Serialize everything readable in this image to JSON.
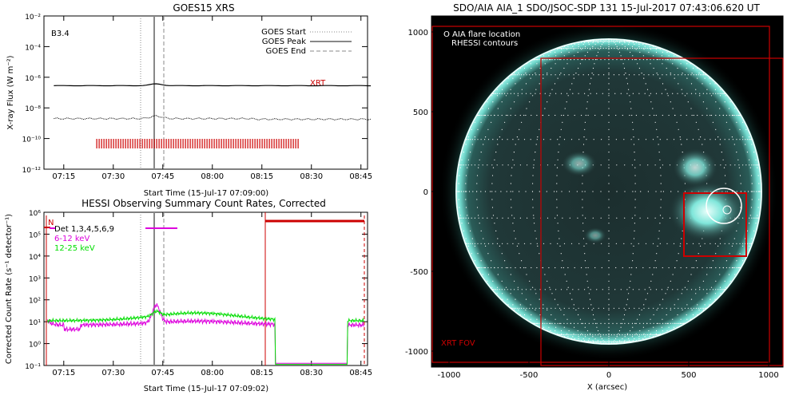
{
  "chart_data": [
    {
      "type": "line",
      "title": "GOES15 XRS",
      "xlabel": "Start Time (15-Jul-17 07:09:00)",
      "ylabel": "X-ray Flux (W m⁻²)",
      "x_ticks": [
        "07:15",
        "07:30",
        "07:45",
        "08:00",
        "08:15",
        "08:30",
        "08:45"
      ],
      "y_ticks": [
        "10⁻²",
        "10⁻⁴",
        "10⁻⁶",
        "10⁻⁸",
        "10⁻¹⁰",
        "10⁻¹²"
      ],
      "y_log": true,
      "ylim": [
        1e-12,
        0.01
      ],
      "class_label": "B3.4",
      "xrt_label": "XRT",
      "legend": [
        "GOES Start",
        "GOES Peak",
        "GOES End"
      ],
      "legend_position": "top-right",
      "markers": {
        "start": "07:41",
        "peak": "07:43",
        "end": "07:46"
      },
      "series": [
        {
          "name": "",
          "style": "solid",
          "approx_level": "3e-7"
        },
        {
          "name": "",
          "style": "dotted",
          "approx_level": "2e-9"
        }
      ],
      "xrt_coverage": [
        "07:25",
        "08:26"
      ]
    },
    {
      "type": "line",
      "title": "HESSI Observing Summary Count Rates, Corrected",
      "xlabel": "Start Time (15-Jul-17 07:09:02)",
      "ylabel": "Corrected Count Rate (s⁻¹ detector⁻¹)",
      "x_ticks": [
        "07:15",
        "07:30",
        "07:45",
        "08:00",
        "08:15",
        "08:30",
        "08:45"
      ],
      "y_ticks": [
        "10⁶",
        "10⁵",
        "10⁴",
        "10³",
        "10²",
        "10¹",
        "10⁰",
        "10⁻¹"
      ],
      "y_log": true,
      "ylim": [
        0.1,
        1000000.0
      ],
      "legend_title": "Det 1,3,4,5,6,9",
      "series": [
        {
          "name": "6-12 keV",
          "color": "#dd00dd"
        },
        {
          "name": "12-25 keV",
          "color": "#00dd00"
        }
      ],
      "n_label": "N",
      "night_intervals": [
        [
          "07:09",
          "07:11"
        ],
        [
          "08:16",
          "08:45"
        ]
      ]
    },
    {
      "type": "image",
      "title": "SDO/AIA AIA_1 SDO/JSOC-SDP 131 15-Jul-2017 07:43:06.620 UT",
      "xlabel": "X (arcsec)",
      "ylabel": "Y (arcsec)",
      "x_ticks": [
        "-1000",
        "-500",
        "0",
        "500",
        "1000"
      ],
      "y_ticks": [
        "1000",
        "500",
        "0",
        "-500",
        "-1000"
      ],
      "legend": [
        "O AIA flare location",
        "RHESSI contours"
      ],
      "fov_label": "XRT FOV",
      "flare_location_arcsec": [
        780,
        -90
      ]
    }
  ],
  "colors": {
    "red": "#cc0000",
    "magenta": "#dd00dd",
    "green": "#00dd00",
    "cyan": "#2ad4c0",
    "sun_dark": "#1f3535"
  }
}
